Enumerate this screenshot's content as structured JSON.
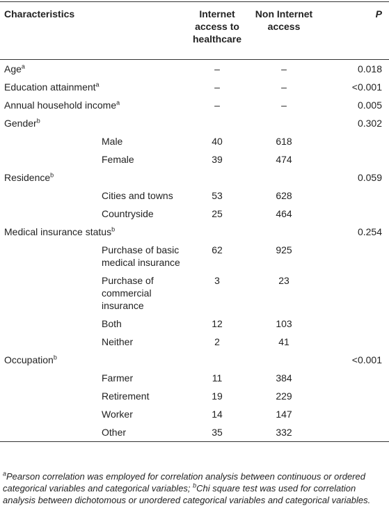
{
  "table": {
    "header": [
      "Characteristics",
      "Internet access to healthcare",
      "Non Internet access",
      "P"
    ],
    "rows": [
      {
        "label": "Age",
        "sup": "a",
        "internet": "–",
        "non": "–",
        "p": "0.018"
      },
      {
        "label": "Education attainment",
        "sup": "a",
        "internet": "–",
        "non": "–",
        "p": "<0.001"
      },
      {
        "label": "Annual household income",
        "sup": "a",
        "internet": "–",
        "non": "–",
        "p": "0.005"
      },
      {
        "label": "Gender",
        "sup": "b",
        "p": "0.302"
      },
      {
        "sub": "Male",
        "internet": 40,
        "non": 618
      },
      {
        "sub": "Female",
        "internet": 39,
        "non": 474
      },
      {
        "label": "Residence",
        "sup": "b",
        "p": "0.059"
      },
      {
        "sub": "Cities and towns",
        "internet": 53,
        "non": 628
      },
      {
        "sub": "Countryside",
        "internet": 25,
        "non": 464
      },
      {
        "label": "Medical insurance status",
        "sup": "b",
        "p": "0.254"
      },
      {
        "sub": "Purchase of basic medical insurance",
        "internet": 62,
        "non": 925
      },
      {
        "sub": "Purchase of commercial insurance",
        "internet": 3,
        "non": 23
      },
      {
        "sub": "Both",
        "internet": 12,
        "non": 103
      },
      {
        "sub": "Neither",
        "internet": 2,
        "non": 41
      },
      {
        "label": "Occupation",
        "sup": "b",
        "p": "<0.001"
      },
      {
        "sub": "Farmer",
        "internet": 11,
        "non": 384
      },
      {
        "sub": "Retirement",
        "internet": 19,
        "non": 229
      },
      {
        "sub": "Worker",
        "internet": 14,
        "non": 147
      },
      {
        "sub": "Other",
        "internet": 35,
        "non": 332
      }
    ]
  },
  "footnote": [
    {
      "sup": "a",
      "text": "Pearson correlation was employed for correlation analysis between continuous or ordered categorical variables and categorical variables; "
    },
    {
      "sup": "b",
      "text": "Chi square test was used for correlation analysis between dichotomous or unordered categorical variables and categorical variables."
    }
  ]
}
